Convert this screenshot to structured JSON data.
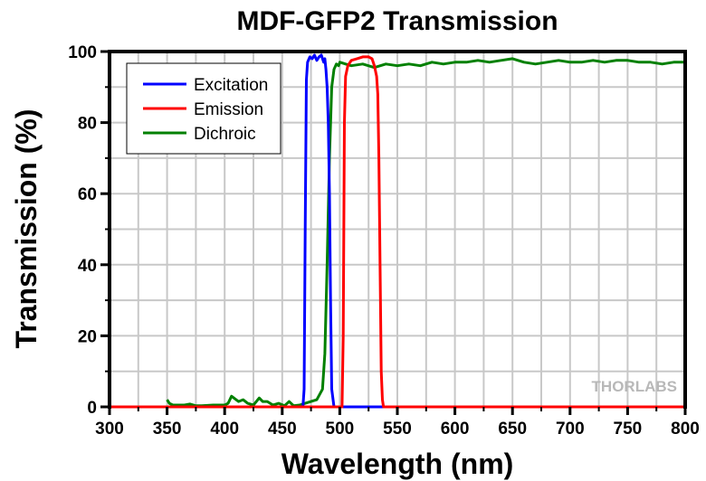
{
  "chart_data": {
    "type": "line",
    "title": "MDF-GFP2 Transmission",
    "xlabel": "Wavelength (nm)",
    "ylabel": "Transmission (%)",
    "xlim": [
      300,
      800
    ],
    "ylim": [
      0,
      100
    ],
    "xticks": [
      300,
      350,
      400,
      450,
      500,
      550,
      600,
      650,
      700,
      750,
      800
    ],
    "yticks": [
      0,
      20,
      40,
      60,
      80,
      100
    ],
    "grid": true,
    "legend_position": "top-left",
    "watermark": "THORLABS",
    "series": [
      {
        "name": "Excitation",
        "color": "#0000ff",
        "x": [
          300,
          468,
          469,
          470,
          471,
          472,
          474,
          476,
          478,
          480,
          482,
          484,
          486,
          487,
          488,
          489,
          490,
          491,
          492,
          493,
          495,
          500,
          550,
          800
        ],
        "y": [
          0,
          0,
          5,
          50,
          92,
          97,
          98.5,
          98,
          99,
          97.5,
          98.5,
          99,
          97,
          98,
          95,
          90,
          80,
          60,
          30,
          5,
          0,
          0,
          0,
          0
        ]
      },
      {
        "name": "Emission",
        "color": "#ff0000",
        "x": [
          300,
          502,
          503,
          504,
          505,
          507,
          510,
          515,
          520,
          525,
          528,
          530,
          532,
          533,
          534,
          535,
          536,
          537,
          538,
          540,
          800
        ],
        "y": [
          0,
          0,
          20,
          80,
          93,
          96,
          97.5,
          98,
          98.5,
          98.5,
          98,
          96,
          93,
          88,
          70,
          40,
          10,
          2,
          0,
          0,
          0
        ]
      },
      {
        "name": "Dichroic",
        "color": "#008000",
        "x": [
          350,
          352,
          355,
          360,
          365,
          370,
          375,
          380,
          390,
          400,
          403,
          406,
          408,
          412,
          416,
          420,
          425,
          430,
          433,
          437,
          442,
          447,
          452,
          456,
          460,
          465,
          470,
          475,
          480,
          485,
          487,
          489,
          491,
          493,
          495,
          497,
          499,
          500,
          505,
          510,
          520,
          530,
          540,
          550,
          560,
          570,
          580,
          590,
          600,
          610,
          620,
          630,
          640,
          650,
          660,
          670,
          680,
          690,
          700,
          710,
          720,
          730,
          740,
          750,
          760,
          770,
          780,
          790,
          800
        ],
        "y": [
          2,
          1,
          0.5,
          0.5,
          0.5,
          0.8,
          0.3,
          0.3,
          0.5,
          0.5,
          1,
          3,
          2.5,
          1.5,
          2,
          1,
          0.5,
          2.5,
          1.5,
          1.5,
          0.5,
          1,
          0.3,
          1.5,
          0.3,
          0.5,
          1,
          1.5,
          2,
          5,
          15,
          40,
          70,
          90,
          95,
          96.5,
          96,
          97,
          96.5,
          96,
          96.5,
          95.5,
          96.5,
          96,
          96.5,
          96,
          97,
          96.5,
          97,
          97,
          97.5,
          97,
          97.5,
          98,
          97,
          96.5,
          97,
          97.5,
          97,
          97,
          97.5,
          97,
          97.5,
          97.5,
          97,
          97,
          96.5,
          97,
          97
        ]
      }
    ]
  }
}
